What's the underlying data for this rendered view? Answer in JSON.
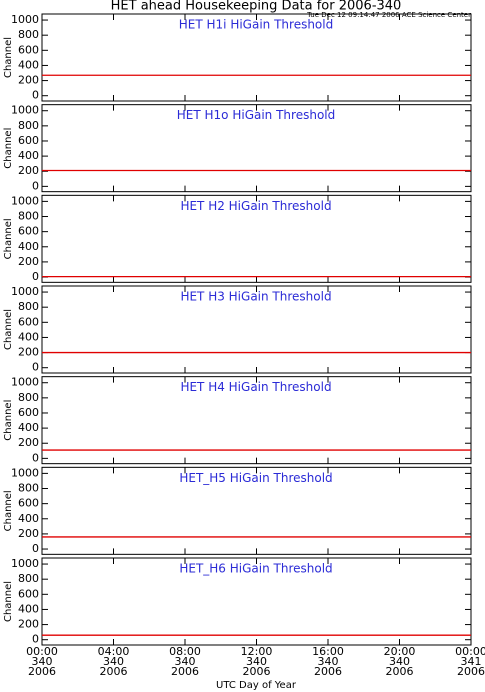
{
  "title": "HET ahead Housekeeping Data for 2006-340",
  "subtitle": "Tue Dec 12 09:14:47 2006 ACE Science Center",
  "chart_data": [
    {
      "type": "line",
      "title": "HET H1i HiGain Threshold",
      "ylabel": "Channel",
      "xlim": [
        0,
        24
      ],
      "xticks": [
        0,
        4,
        8,
        12,
        16,
        20,
        24
      ],
      "ylim": [
        -70,
        1080
      ],
      "yticks": [
        0,
        200,
        400,
        600,
        800,
        1000
      ],
      "x": [
        0,
        24
      ],
      "series": [
        {
          "color": "#e00000",
          "values": [
            270,
            270
          ]
        }
      ]
    },
    {
      "type": "line",
      "title": "HET H1o HiGain Threshold",
      "ylabel": "Channel",
      "xlim": [
        0,
        24
      ],
      "xticks": [
        0,
        4,
        8,
        12,
        16,
        20,
        24
      ],
      "ylim": [
        -70,
        1080
      ],
      "yticks": [
        0,
        200,
        400,
        600,
        800,
        1000
      ],
      "x": [
        0,
        24
      ],
      "series": [
        {
          "color": "#e00000",
          "values": [
            210,
            210
          ]
        }
      ]
    },
    {
      "type": "line",
      "title": "HET H2 HiGain Threshold",
      "ylabel": "Channel",
      "xlim": [
        0,
        24
      ],
      "xticks": [
        0,
        4,
        8,
        12,
        16,
        20,
        24
      ],
      "ylim": [
        -70,
        1080
      ],
      "yticks": [
        0,
        200,
        400,
        600,
        800,
        1000
      ],
      "x": [
        0,
        24
      ],
      "series": [
        {
          "color": "#e00000",
          "values": [
            5,
            5
          ]
        }
      ]
    },
    {
      "type": "line",
      "title": "HET H3 HiGain Threshold",
      "ylabel": "Channel",
      "xlim": [
        0,
        24
      ],
      "xticks": [
        0,
        4,
        8,
        12,
        16,
        20,
        24
      ],
      "ylim": [
        -70,
        1080
      ],
      "yticks": [
        0,
        200,
        400,
        600,
        800,
        1000
      ],
      "x": [
        0,
        24
      ],
      "series": [
        {
          "color": "#e00000",
          "values": [
            200,
            200
          ]
        }
      ]
    },
    {
      "type": "line",
      "title": "HET H4 HiGain Threshold",
      "ylabel": "Channel",
      "xlim": [
        0,
        24
      ],
      "xticks": [
        0,
        4,
        8,
        12,
        16,
        20,
        24
      ],
      "ylim": [
        -70,
        1080
      ],
      "yticks": [
        0,
        200,
        400,
        600,
        800,
        1000
      ],
      "x": [
        0,
        24
      ],
      "series": [
        {
          "color": "#e00000",
          "values": [
            110,
            110
          ]
        }
      ]
    },
    {
      "type": "line",
      "title": "HET_H5 HiGain Threshold",
      "ylabel": "Channel",
      "xlim": [
        0,
        24
      ],
      "xticks": [
        0,
        4,
        8,
        12,
        16,
        20,
        24
      ],
      "ylim": [
        -70,
        1080
      ],
      "yticks": [
        0,
        200,
        400,
        600,
        800,
        1000
      ],
      "x": [
        0,
        24
      ],
      "series": [
        {
          "color": "#e00000",
          "values": [
            160,
            160
          ]
        }
      ]
    },
    {
      "type": "line",
      "title": "HET_H6 HiGain Threshold",
      "ylabel": "Channel",
      "xlabel": "UTC Day of Year",
      "xlim": [
        0,
        24
      ],
      "xticks": [
        {
          "value": 0,
          "label": [
            "00:00",
            "340",
            "2006"
          ]
        },
        {
          "value": 4,
          "label": [
            "04:00",
            "340",
            "2006"
          ]
        },
        {
          "value": 8,
          "label": [
            "08:00",
            "340",
            "2006"
          ]
        },
        {
          "value": 12,
          "label": [
            "12:00",
            "340",
            "2006"
          ]
        },
        {
          "value": 16,
          "label": [
            "16:00",
            "340",
            "2006"
          ]
        },
        {
          "value": 20,
          "label": [
            "20:00",
            "340",
            "2006"
          ]
        },
        {
          "value": 24,
          "label": [
            "00:00",
            "341",
            "2006"
          ]
        }
      ],
      "ylim": [
        -70,
        1080
      ],
      "yticks": [
        0,
        200,
        400,
        600,
        800,
        1000
      ],
      "x": [
        0,
        24
      ],
      "series": [
        {
          "color": "#e00000",
          "values": [
            60,
            60
          ]
        }
      ]
    }
  ]
}
